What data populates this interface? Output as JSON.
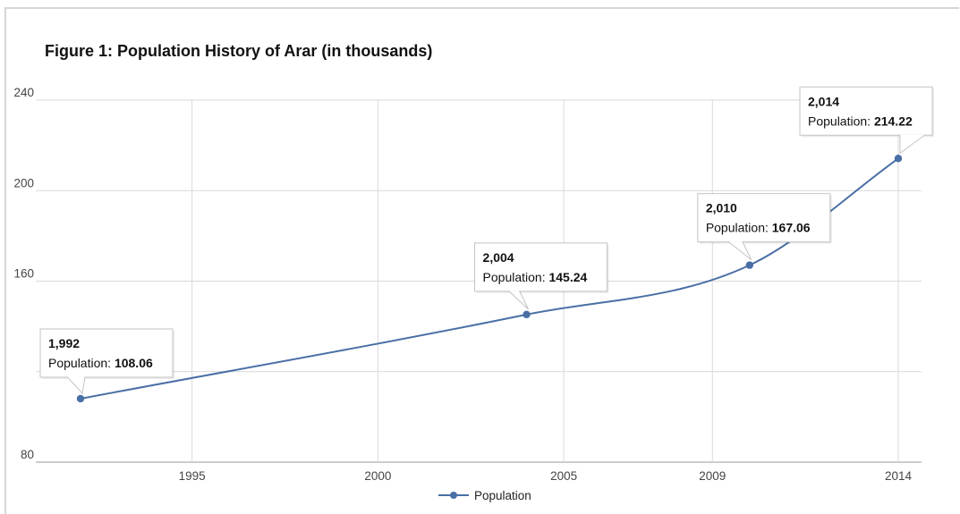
{
  "chart_data": {
    "type": "line",
    "title": "Figure 1: Population History of Arar (in thousands)",
    "xlabel": "",
    "ylabel": "",
    "series": [
      {
        "name": "Population",
        "points": [
          {
            "x": 1992,
            "y": 108.06,
            "x_label": "1,992",
            "y_label": "108.06"
          },
          {
            "x": 2004,
            "y": 145.24,
            "x_label": "2,004",
            "y_label": "145.24"
          },
          {
            "x": 2010,
            "y": 167.06,
            "x_label": "2,010",
            "y_label": "167.06"
          },
          {
            "x": 2014,
            "y": 214.22,
            "x_label": "2,014",
            "y_label": "214.22"
          }
        ]
      }
    ],
    "xlim": [
      1992,
      2014
    ],
    "ylim": [
      80,
      240
    ],
    "x_ticks": [
      {
        "value": 1995,
        "label": "1995"
      },
      {
        "value": 2000,
        "label": "2000"
      },
      {
        "value": 2005,
        "label": "2005"
      },
      {
        "value": 2009,
        "label": "2009"
      },
      {
        "value": 2014,
        "label": "2014"
      }
    ],
    "y_ticks": [
      {
        "value": 80,
        "label": "80"
      },
      {
        "value": 120,
        "label": ""
      },
      {
        "value": 160,
        "label": "160"
      },
      {
        "value": 200,
        "label": "200"
      },
      {
        "value": 240,
        "label": "240"
      }
    ],
    "grid": true,
    "legend_position": "bottom",
    "line_color": "#4a6fa5",
    "grid_color": "#d9d9d9",
    "tooltip_value_label": "Population"
  }
}
